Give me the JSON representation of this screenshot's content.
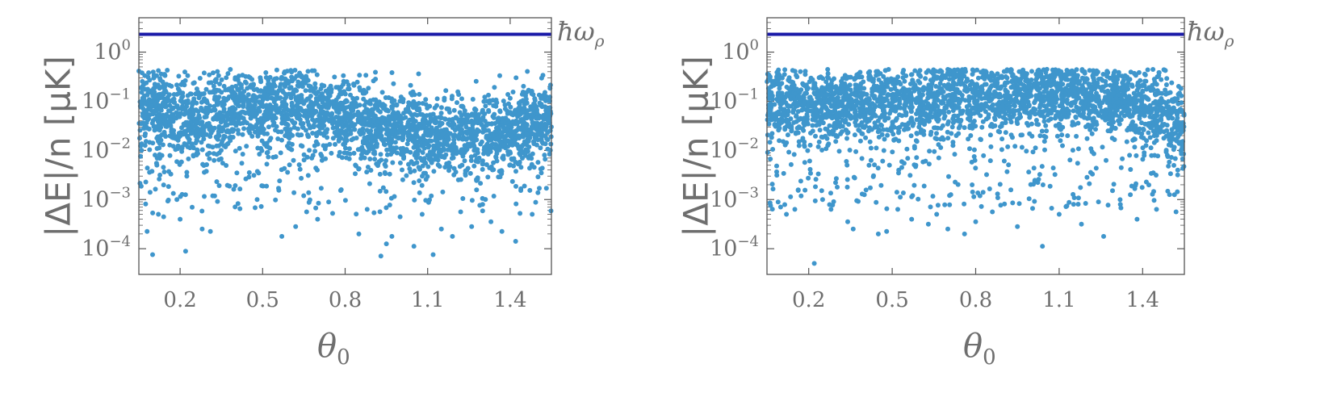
{
  "colors": {
    "points": "#3f96cc",
    "reference_line": "#1a1aa8",
    "axis": "#555555",
    "text": "#6e6e6e"
  },
  "chart_data": [
    {
      "type": "scatter",
      "xlabel": "θ0",
      "ylabel": "|ΔE|/n [μK]",
      "ylog": true,
      "xlim": [
        0.05,
        1.55
      ],
      "ylim": [
        3e-05,
        5.0
      ],
      "x_ticks": [
        "0.2",
        "0.5",
        "0.8",
        "1.1",
        "1.4"
      ],
      "y_ticks": [
        "10^0",
        "10^-1",
        "10^-2",
        "10^-3",
        "10^-4"
      ],
      "reference_line": {
        "label": "ħωρ",
        "y": 2.3
      },
      "series": [
        {
          "band": [
            [
              0.05,
              -1.2,
              0.9
            ],
            [
              0.2,
              -1.3,
              0.9
            ],
            [
              0.35,
              -1.25,
              0.9
            ],
            [
              0.6,
              -1.05,
              0.9
            ],
            [
              0.8,
              -1.35,
              0.9
            ],
            [
              1.0,
              -1.6,
              0.9
            ],
            [
              1.15,
              -1.75,
              0.9
            ],
            [
              1.3,
              -1.7,
              0.9
            ],
            [
              1.45,
              -1.5,
              0.9
            ],
            [
              1.55,
              -1.25,
              0.9
            ]
          ],
          "dense_count": 2600,
          "outliers": [
            [
              0.08,
              -3.65
            ],
            [
              0.1,
              -4.12
            ],
            [
              0.14,
              -3.35
            ],
            [
              0.2,
              -3.4
            ],
            [
              0.22,
              -4.05
            ],
            [
              0.28,
              -3.6
            ],
            [
              0.31,
              -3.65
            ],
            [
              0.4,
              -3.15
            ],
            [
              0.57,
              -3.75
            ],
            [
              0.62,
              -3.55
            ],
            [
              0.66,
              -3.25
            ],
            [
              0.7,
              -3.4
            ],
            [
              0.85,
              -3.7
            ],
            [
              0.88,
              -3.2
            ],
            [
              0.93,
              -4.15
            ],
            [
              0.95,
              -3.9
            ],
            [
              0.97,
              -3.75
            ],
            [
              1.0,
              -3.35
            ],
            [
              1.05,
              -3.95
            ],
            [
              1.08,
              -3.3
            ],
            [
              1.12,
              -4.12
            ],
            [
              1.15,
              -3.6
            ],
            [
              1.19,
              -3.75
            ],
            [
              1.22,
              -3.25
            ],
            [
              1.26,
              -3.55
            ],
            [
              1.33,
              -3.45
            ],
            [
              1.37,
              -3.65
            ],
            [
              1.42,
              -3.85
            ],
            [
              1.48,
              -3.3
            ],
            [
              0.48,
              -3.0
            ],
            [
              0.74,
              -3.05
            ],
            [
              1.3,
              -3.1
            ]
          ],
          "sparse_count": 260,
          "sparse_range": [
            -3.3,
            -1.6
          ]
        }
      ]
    },
    {
      "type": "scatter",
      "xlabel": "θ0",
      "ylabel": "|ΔE|/n [μK]",
      "ylog": true,
      "xlim": [
        0.05,
        1.55
      ],
      "ylim": [
        3e-05,
        5.0
      ],
      "x_ticks": [
        "0.2",
        "0.5",
        "0.8",
        "1.1",
        "1.4"
      ],
      "y_ticks": [
        "10^0",
        "10^-1",
        "10^-2",
        "10^-3",
        "10^-4"
      ],
      "reference_line": {
        "label": "ħωρ",
        "y": 2.3
      },
      "series": [
        {
          "band": [
            [
              0.05,
              -1.05,
              0.85
            ],
            [
              0.2,
              -1.1,
              0.85
            ],
            [
              0.4,
              -1.05,
              0.85
            ],
            [
              0.6,
              -1.0,
              0.85
            ],
            [
              0.8,
              -0.95,
              0.85
            ],
            [
              1.0,
              -0.85,
              0.85
            ],
            [
              1.15,
              -0.85,
              0.85
            ],
            [
              1.3,
              -0.95,
              0.85
            ],
            [
              1.45,
              -1.2,
              0.85
            ],
            [
              1.55,
              -1.5,
              0.9
            ]
          ],
          "dense_count": 2600,
          "outliers": [
            [
              0.09,
              -3.05
            ],
            [
              0.12,
              -3.3
            ],
            [
              0.15,
              -3.2
            ],
            [
              0.22,
              -4.3
            ],
            [
              0.25,
              -3.0
            ],
            [
              0.28,
              -3.2
            ],
            [
              0.34,
              -3.45
            ],
            [
              0.36,
              -3.6
            ],
            [
              0.45,
              -3.7
            ],
            [
              0.48,
              -3.65
            ],
            [
              0.52,
              -3.2
            ],
            [
              0.57,
              -3.4
            ],
            [
              0.63,
              -3.5
            ],
            [
              0.66,
              -3.3
            ],
            [
              0.7,
              -3.6
            ],
            [
              0.76,
              -3.7
            ],
            [
              0.8,
              -3.45
            ],
            [
              0.86,
              -3.25
            ],
            [
              0.95,
              -3.55
            ],
            [
              1.04,
              -3.95
            ],
            [
              1.1,
              -3.3
            ],
            [
              1.18,
              -3.5
            ],
            [
              1.26,
              -3.75
            ],
            [
              1.32,
              -3.1
            ],
            [
              1.38,
              -3.4
            ],
            [
              1.45,
              -3.2
            ],
            [
              1.52,
              -3.25
            ],
            [
              0.4,
              -2.9
            ]
          ],
          "sparse_count": 260,
          "sparse_range": [
            -3.2,
            -1.6
          ]
        }
      ]
    }
  ]
}
